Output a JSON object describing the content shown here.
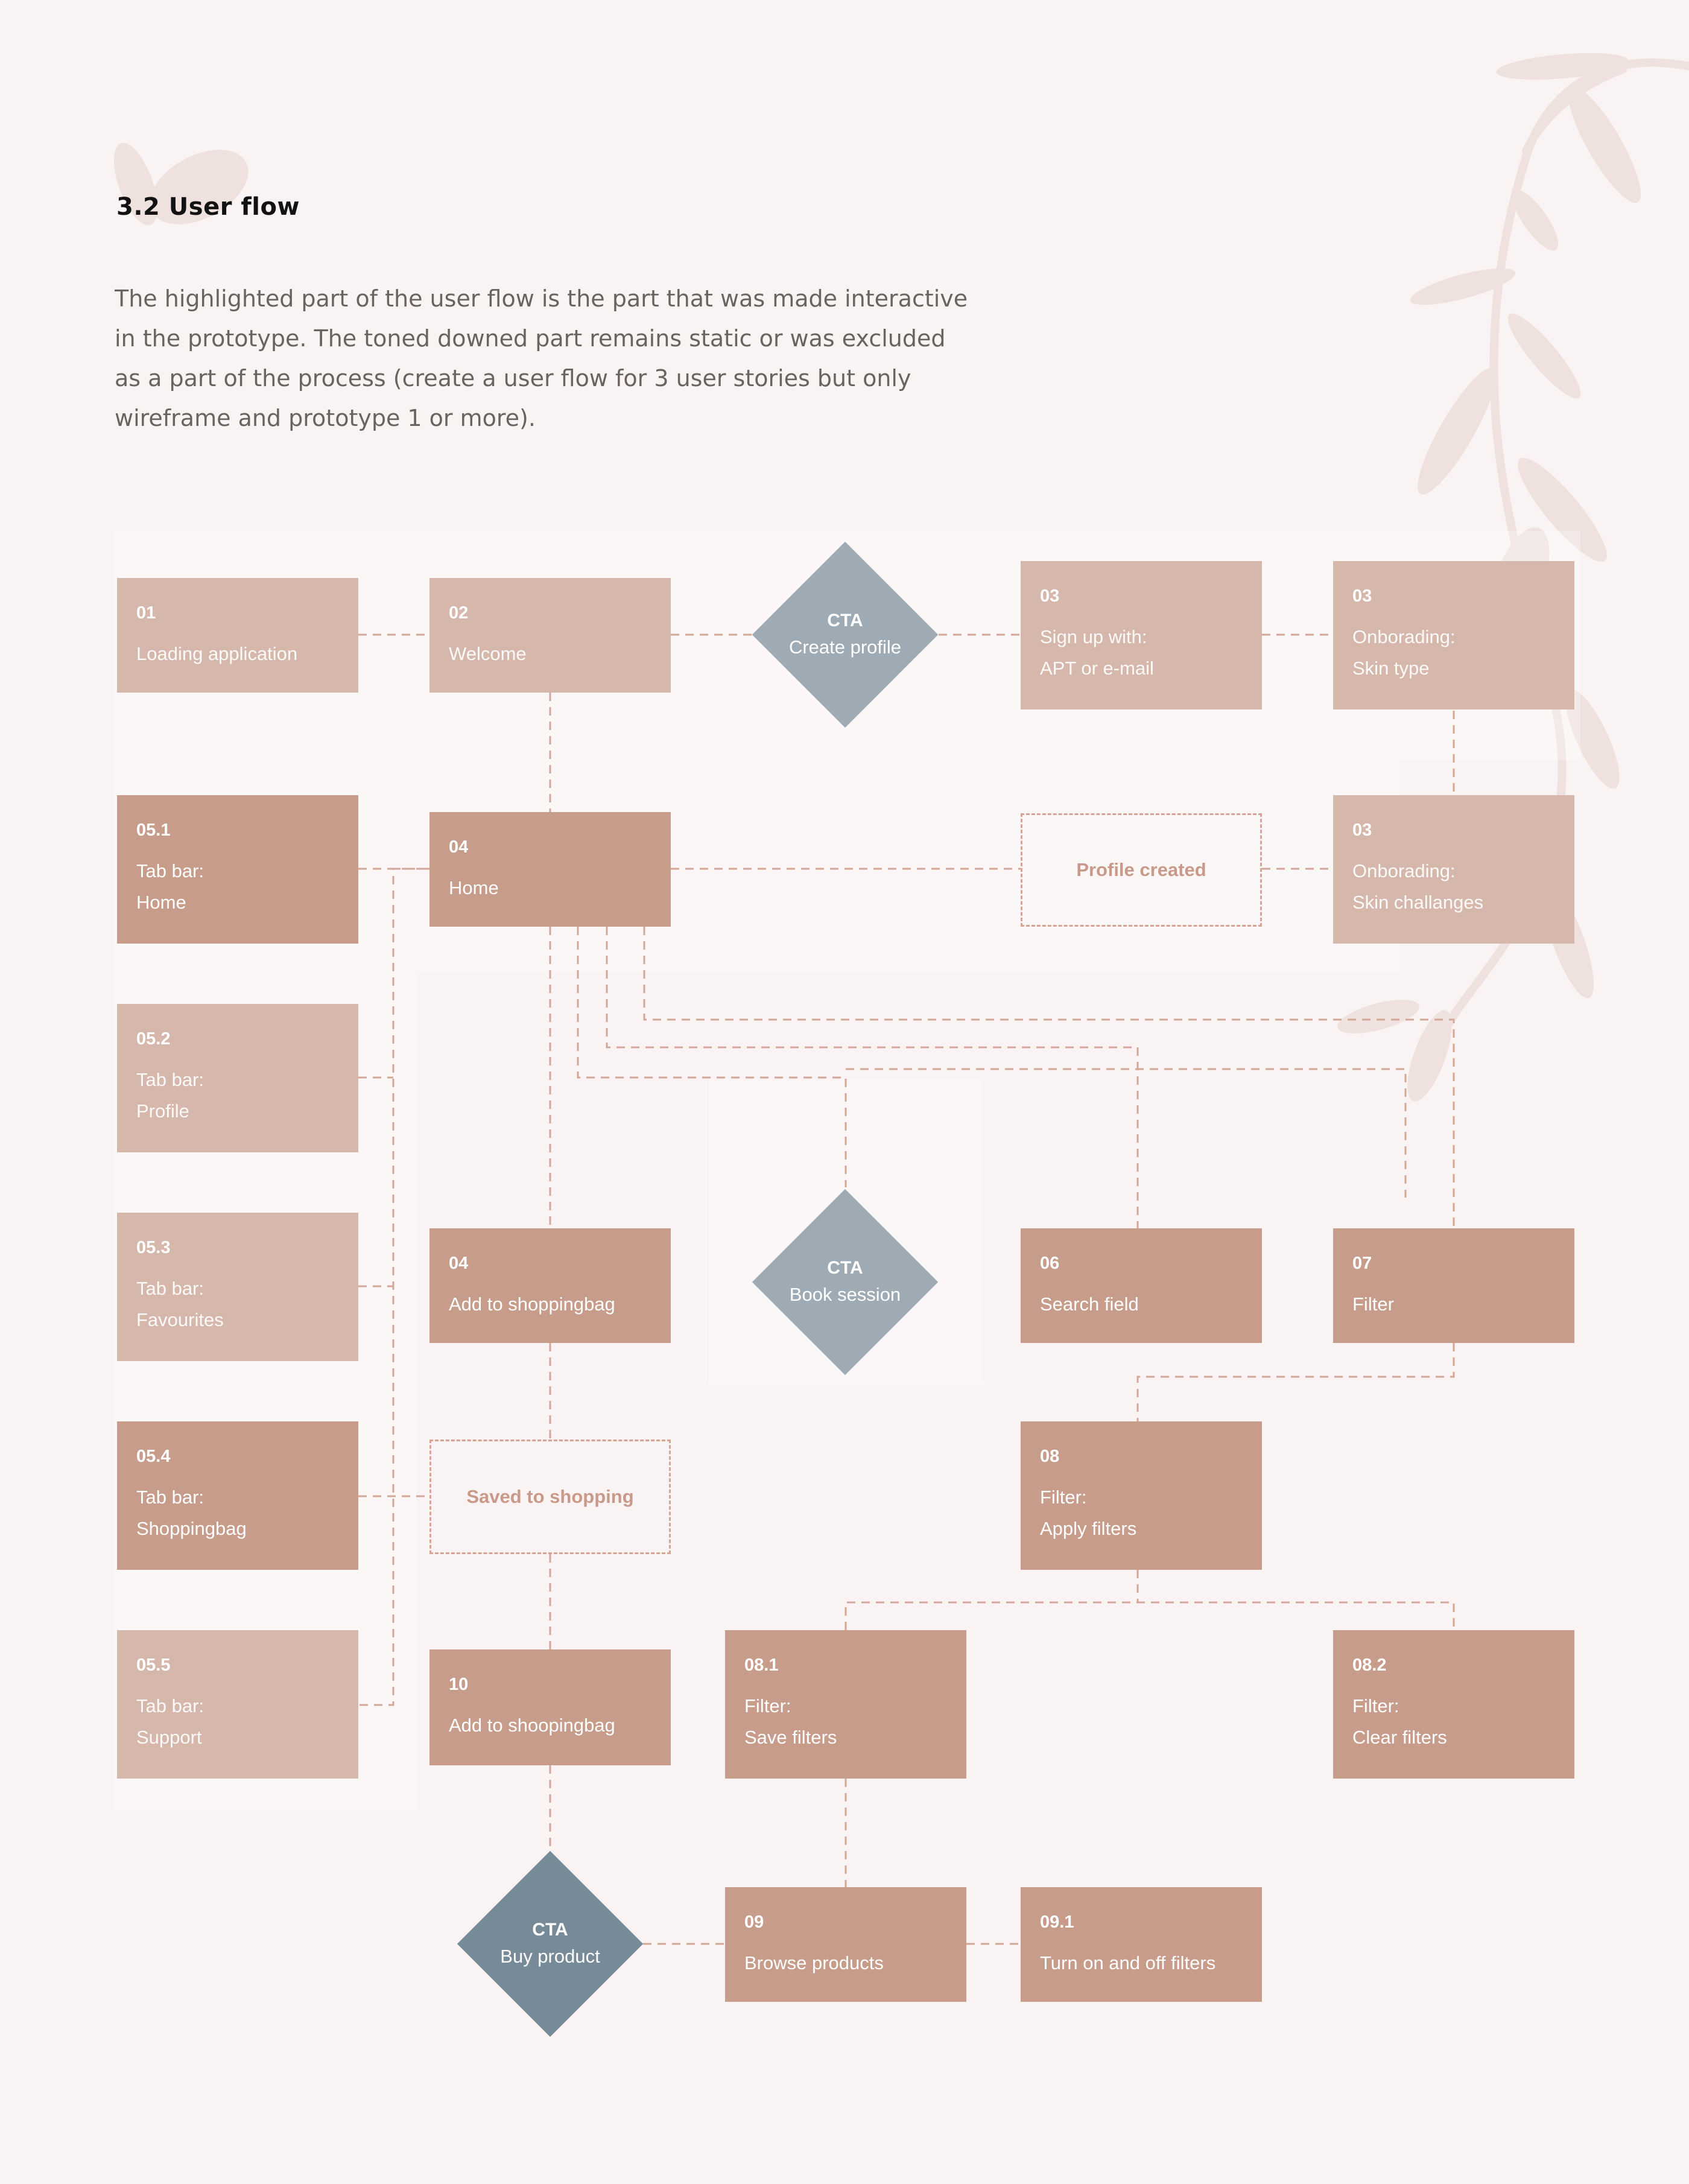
{
  "page": {
    "title": "3.2 User flow",
    "intro": "The highlighted part of the user flow is the part that was made interactive in the prototype. The toned downed part remains static or was excluded as a part of the process (create a user flow for 3 user stories but only wireframe and prototype 1 or more)."
  },
  "colors": {
    "background": "#f9f4f3",
    "node_active": "#c79c8b",
    "node_static": "#d6b7ab",
    "decision_light": "#9eabb4",
    "decision_dark": "#778a98",
    "connector": "#d4a898",
    "state_border": "#d6a495"
  },
  "flow": {
    "n01": {
      "num": "01",
      "label": "Loading application"
    },
    "n02": {
      "num": "02",
      "label": "Welcome"
    },
    "cta_create": {
      "t1": "CTA",
      "t2": "Create profile"
    },
    "n03_signup": {
      "num": "03",
      "label": "Sign up with:\nAPT or e-mail"
    },
    "n03_skin": {
      "num": "03",
      "label": "Onborading:\nSkin type"
    },
    "n051": {
      "num": "05.1",
      "label": "Tab bar:\nHome"
    },
    "n04_home": {
      "num": "04",
      "label": "Home"
    },
    "profile_created": "Profile created",
    "n03_chall": {
      "num": "03",
      "label": "Onborading:\nSkin challanges"
    },
    "n052": {
      "num": "05.2",
      "label": "Tab bar:\nProfile"
    },
    "n053": {
      "num": "05.3",
      "label": "Tab bar:\nFavourites"
    },
    "n04_add": {
      "num": "04",
      "label": "Add to shoppingbag"
    },
    "cta_book": {
      "t1": "CTA",
      "t2": "Book session"
    },
    "n06": {
      "num": "06",
      "label": "Search field"
    },
    "n07": {
      "num": "07",
      "label": "Filter"
    },
    "n054": {
      "num": "05.4",
      "label": "Tab bar:\nShoppingbag"
    },
    "saved": "Saved to shopping",
    "n08": {
      "num": "08",
      "label": "Filter:\nApply filters"
    },
    "n055": {
      "num": "05.5",
      "label": "Tab bar:\nSupport"
    },
    "n10": {
      "num": "10",
      "label": "Add to shoopingbag"
    },
    "n081": {
      "num": "08.1",
      "label": "Filter:\nSave filters"
    },
    "n082": {
      "num": "08.2",
      "label": "Filter:\nClear filters"
    },
    "cta_buy": {
      "t1": "CTA",
      "t2": "Buy product"
    },
    "n09": {
      "num": "09",
      "label": "Browse products"
    },
    "n091": {
      "num": "09.1",
      "label": "Turn on and off filters"
    }
  }
}
